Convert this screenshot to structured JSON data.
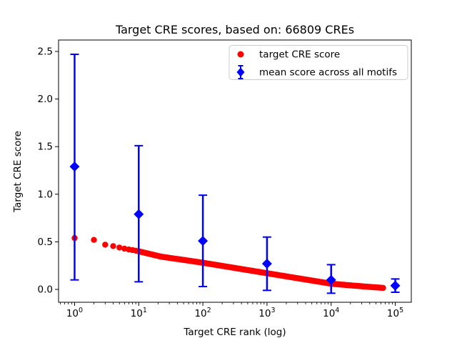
{
  "figure": {
    "background": "#ffffff"
  },
  "chart_data": {
    "type": "scatter",
    "title": "Target CRE scores, based on: 66809 CREs",
    "xlabel": "Target CRE rank (log)",
    "ylabel": "Target CRE score",
    "xscale": "log",
    "yscale": "linear",
    "grid": false,
    "xlim": [
      0.5623,
      177828
    ],
    "ylim": [
      -0.135,
      2.62
    ],
    "xticks": [
      {
        "value": 1,
        "base": "10",
        "exp": "0"
      },
      {
        "value": 10,
        "base": "10",
        "exp": "1"
      },
      {
        "value": 100,
        "base": "10",
        "exp": "2"
      },
      {
        "value": 1000,
        "base": "10",
        "exp": "3"
      },
      {
        "value": 10000,
        "base": "10",
        "exp": "4"
      },
      {
        "value": 100000,
        "base": "10",
        "exp": "5"
      }
    ],
    "yticks": [
      {
        "value": 0.0,
        "label": "0.0"
      },
      {
        "value": 0.5,
        "label": "0.5"
      },
      {
        "value": 1.0,
        "label": "1.0"
      },
      {
        "value": 1.5,
        "label": "1.5"
      },
      {
        "value": 2.0,
        "label": "2.0"
      },
      {
        "value": 2.5,
        "label": "2.5"
      }
    ],
    "legend": {
      "position": "upper right"
    },
    "series": [
      {
        "name": "target CRE score",
        "type": "scatter",
        "marker": "circle",
        "color": "#ff0000",
        "n_points_total": 66809,
        "points_approx": [
          [
            1,
            0.54
          ],
          [
            2,
            0.52
          ],
          [
            3,
            0.47
          ],
          [
            4,
            0.455
          ],
          [
            5,
            0.44
          ],
          [
            6,
            0.428
          ],
          [
            7,
            0.42
          ],
          [
            8,
            0.413
          ],
          [
            9,
            0.407
          ],
          [
            10,
            0.4
          ],
          [
            22,
            0.345
          ],
          [
            100,
            0.28
          ],
          [
            316,
            0.225
          ],
          [
            1000,
            0.17
          ],
          [
            3162,
            0.115
          ],
          [
            10000,
            0.06
          ],
          [
            25000,
            0.037
          ],
          [
            66809,
            0.015
          ]
        ]
      },
      {
        "name": "mean score across all motifs",
        "type": "errorbar",
        "marker": "diamond",
        "color": "#0000ff",
        "points": [
          {
            "x": 1,
            "y": 1.29,
            "ylow": 0.1,
            "yhigh": 2.47
          },
          {
            "x": 10,
            "y": 0.79,
            "ylow": 0.08,
            "yhigh": 1.51
          },
          {
            "x": 100,
            "y": 0.51,
            "ylow": 0.03,
            "yhigh": 0.99
          },
          {
            "x": 1000,
            "y": 0.27,
            "ylow": -0.01,
            "yhigh": 0.55
          },
          {
            "x": 10000,
            "y": 0.1,
            "ylow": -0.04,
            "yhigh": 0.26
          },
          {
            "x": 100000,
            "y": 0.04,
            "ylow": -0.03,
            "yhigh": 0.11
          }
        ]
      }
    ]
  }
}
